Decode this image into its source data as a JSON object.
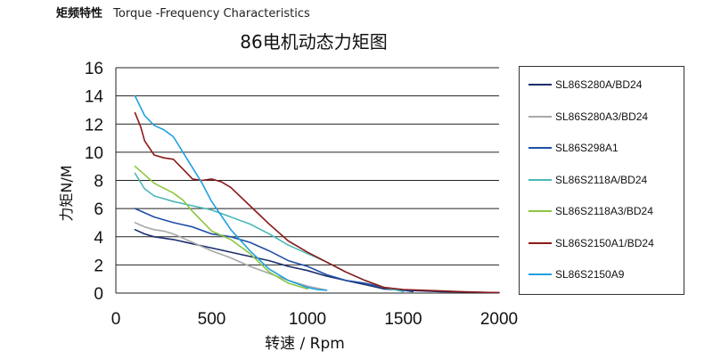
{
  "header": {
    "title_cn": "矩频特性",
    "title_en": "Torque -Frequency Characteristics"
  },
  "chart_data": {
    "type": "line",
    "title": "86电机动态力矩图",
    "xlabel": "转速 / Rpm",
    "ylabel": "力矩N/M",
    "xlim": [
      0,
      2000
    ],
    "ylim": [
      0,
      16
    ],
    "xticks": [
      0,
      500,
      1000,
      1500,
      2000
    ],
    "yticks": [
      0,
      2,
      4,
      6,
      8,
      10,
      12,
      14,
      16
    ],
    "grid": "horizontal",
    "legend_position": "right",
    "series": [
      {
        "name": "SL86S280A/BD24",
        "color": "#1b2f6e",
        "x": [
          100,
          150,
          200,
          300,
          400,
          500,
          600,
          700,
          800,
          900,
          1000,
          1100,
          1200,
          1300,
          1400,
          1500,
          1600,
          1700,
          1800,
          1900,
          2000
        ],
        "y": [
          4.5,
          4.2,
          4.0,
          3.8,
          3.5,
          3.2,
          2.9,
          2.6,
          2.3,
          1.9,
          1.6,
          1.2,
          0.9,
          0.6,
          0.3,
          0.2,
          0.15,
          0.1,
          0.08,
          0.05,
          0.03
        ]
      },
      {
        "name": "SL86S280A3/BD24",
        "color": "#a8a8a8",
        "x": [
          100,
          150,
          200,
          250,
          300,
          350,
          400,
          500,
          600,
          700,
          800,
          900,
          1000,
          1100
        ],
        "y": [
          5.0,
          4.7,
          4.5,
          4.4,
          4.2,
          3.9,
          3.6,
          3.0,
          2.5,
          1.9,
          1.4,
          0.9,
          0.5,
          0.2
        ]
      },
      {
        "name": "SL86S298A1",
        "color": "#1f4fa6",
        "x": [
          100,
          200,
          300,
          400,
          500,
          600,
          700,
          800,
          900,
          1000,
          1100,
          1200,
          1300,
          1400,
          1500,
          1550
        ],
        "y": [
          6.0,
          5.4,
          5.0,
          4.7,
          4.2,
          4.0,
          3.6,
          3.0,
          2.3,
          1.9,
          1.3,
          0.9,
          0.7,
          0.4,
          0.2,
          0.1
        ]
      },
      {
        "name": "SL86S2118A/BD24",
        "color": "#4bb8b6",
        "x": [
          100,
          150,
          200,
          300,
          400,
          500,
          600,
          700,
          800,
          900,
          1000,
          1100,
          1200,
          1300,
          1400,
          1500
        ],
        "y": [
          8.5,
          7.4,
          6.9,
          6.5,
          6.2,
          5.9,
          5.4,
          4.9,
          4.2,
          3.4,
          2.8,
          2.2,
          1.5,
          0.9,
          0.4,
          0.1
        ]
      },
      {
        "name": "SL86S2118A3/BD24",
        "color": "#8cc63f",
        "x": [
          100,
          150,
          200,
          300,
          350,
          400,
          500,
          600,
          700,
          800,
          900,
          1000
        ],
        "y": [
          9.0,
          8.4,
          7.8,
          7.1,
          6.6,
          5.8,
          4.4,
          3.8,
          2.8,
          1.5,
          0.7,
          0.3
        ]
      },
      {
        "name": "SL86S2150A1/BD24",
        "color": "#8b1a1a",
        "x": [
          100,
          130,
          150,
          200,
          250,
          300,
          350,
          400,
          450,
          500,
          550,
          600,
          700,
          800,
          900,
          1000,
          1100,
          1200,
          1300,
          1400,
          1500,
          1600,
          1700,
          1800,
          1900,
          2000
        ],
        "y": [
          12.8,
          11.8,
          10.8,
          9.8,
          9.6,
          9.5,
          8.8,
          8.1,
          8.0,
          8.1,
          7.9,
          7.5,
          6.2,
          4.9,
          3.7,
          2.9,
          2.2,
          1.5,
          0.9,
          0.4,
          0.25,
          0.2,
          0.15,
          0.1,
          0.06,
          0.03
        ]
      },
      {
        "name": "SL86S2150A9",
        "color": "#1fa0e0",
        "x": [
          100,
          150,
          200,
          250,
          300,
          350,
          400,
          450,
          500,
          600,
          700,
          800,
          900,
          1000,
          1050,
          1100
        ],
        "y": [
          14.0,
          12.6,
          11.9,
          11.6,
          11.1,
          10.0,
          8.9,
          7.8,
          6.5,
          4.5,
          3.0,
          1.7,
          0.9,
          0.4,
          0.25,
          0.2
        ]
      }
    ]
  }
}
